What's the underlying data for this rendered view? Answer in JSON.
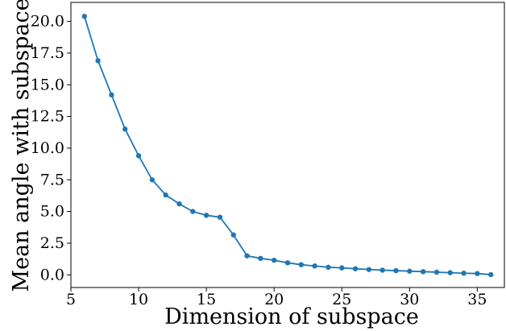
{
  "chart_data": {
    "type": "line",
    "title": "",
    "xlabel": "Dimension of subspace",
    "ylabel": "Mean angle with subspace",
    "xlim": [
      5,
      37
    ],
    "ylim": [
      -1.0,
      21.5
    ],
    "xticks": [
      5,
      10,
      15,
      20,
      25,
      30,
      35
    ],
    "xtick_labels": [
      "5",
      "10",
      "15",
      "20",
      "25",
      "30",
      "35"
    ],
    "yticks": [
      0.0,
      2.5,
      5.0,
      7.5,
      10.0,
      12.5,
      15.0,
      17.5,
      20.0
    ],
    "ytick_labels": [
      "0.0",
      "2.5",
      "5.0",
      "7.5",
      "10.0",
      "12.5",
      "15.0",
      "17.5",
      "20.0"
    ],
    "grid": false,
    "legend": "none",
    "series": [
      {
        "color": "#1f77b4",
        "marker": "circle",
        "x": [
          6,
          7,
          8,
          9,
          10,
          11,
          12,
          13,
          14,
          15,
          16,
          17,
          18,
          19,
          20,
          21,
          22,
          23,
          24,
          25,
          26,
          27,
          28,
          29,
          30,
          31,
          32,
          33,
          34,
          35,
          36
        ],
        "y": [
          20.4,
          16.9,
          14.2,
          11.5,
          9.4,
          7.5,
          6.3,
          5.6,
          5.0,
          4.7,
          4.55,
          3.15,
          1.5,
          1.3,
          1.15,
          0.95,
          0.8,
          0.7,
          0.6,
          0.55,
          0.48,
          0.42,
          0.37,
          0.33,
          0.29,
          0.25,
          0.21,
          0.17,
          0.13,
          0.1,
          0.02
        ]
      }
    ]
  }
}
